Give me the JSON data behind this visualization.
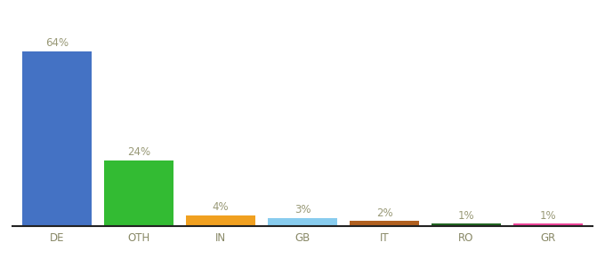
{
  "categories": [
    "DE",
    "OTH",
    "IN",
    "GB",
    "IT",
    "RO",
    "GR"
  ],
  "values": [
    64,
    24,
    4,
    3,
    2,
    1,
    1
  ],
  "labels": [
    "64%",
    "24%",
    "4%",
    "3%",
    "2%",
    "1%",
    "1%"
  ],
  "bar_colors": [
    "#4472c4",
    "#33bb33",
    "#f0a020",
    "#88ccee",
    "#b06020",
    "#226622",
    "#ee4499"
  ],
  "background_color": "#ffffff",
  "ylim": [
    0,
    75
  ],
  "label_fontsize": 8.5,
  "tick_fontsize": 8.5,
  "label_color": "#999977"
}
